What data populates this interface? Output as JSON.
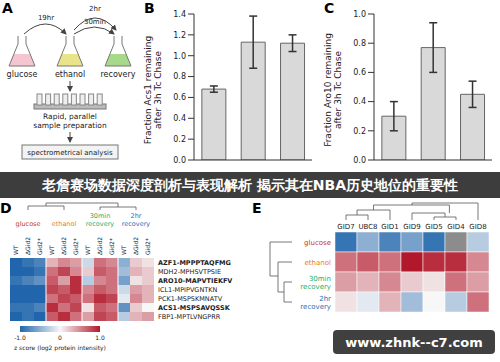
{
  "banner": "老詹赛场数据深度剖析与表现解析 揭示其在NBA历史地位的重要性",
  "watermark": "www.zhnk--c7.com",
  "panel_a": {
    "letter": "A",
    "flasks": [
      "glucose",
      "ethanol",
      "recovery"
    ],
    "times": [
      "19hr",
      "30min",
      "2hr"
    ],
    "steps": [
      "Rapid, parallel sample preparation",
      "spectrometrical analysis"
    ]
  },
  "chart_data": [
    {
      "letter": "B",
      "type": "bar",
      "y_label": "Fraction Acs1 remaining after 3h Tc Chase",
      "categories": [
        null,
        null,
        null
      ],
      "values": [
        0.68,
        1.13,
        1.12
      ],
      "errors": [
        0.03,
        0.25,
        0.08
      ],
      "ylim": [
        0,
        1.4
      ],
      "yticks": [
        {
          "value": 0,
          "label": "0.0"
        },
        0.2,
        0.4,
        0.6,
        0.8,
        {
          "value": 1,
          "label": "1.0"
        },
        1.2,
        1.4
      ],
      "grid": false,
      "tick_labels": "y",
      "color": "#d9d9d9"
    },
    {
      "letter": "C",
      "type": "bar",
      "y_label": "Fraction Aro10 remaining after 3h Tc Chase",
      "categories": [
        null,
        null,
        null
      ],
      "values": [
        0.3,
        0.77,
        0.45
      ],
      "errors": [
        0.1,
        0.17,
        0.09
      ],
      "ylim": [
        0,
        1.0
      ],
      "yticks": [
        {
          "value": 0,
          "label": "0.0"
        },
        0.2,
        0.4,
        0.6,
        0.8,
        {
          "value": 1,
          "label": "1.0"
        }
      ],
      "grid": false,
      "tick_labels": "y",
      "color": "#d9d9d9"
    }
  ],
  "panel_d": {
    "letter": "D",
    "groups": [
      "glucose",
      "ethanol",
      "30min recovery",
      "2hr recovery"
    ],
    "strains": [
      "WT",
      "ΔGid2",
      "Gid2*"
    ],
    "rows": [
      {
        "label": "AZF1-MPPPTAQFMG",
        "bold": true,
        "values": [
          -1,
          -0.9,
          -0.8,
          0.3,
          0.5,
          0.4,
          -0.2,
          0.6,
          0.5,
          -0.5,
          0.2,
          0.1
        ]
      },
      {
        "label": "MDH2-MPHSVTPSIE",
        "bold": false,
        "values": [
          -1,
          -1,
          -0.9,
          0.6,
          0.8,
          0.5,
          0.2,
          0.7,
          0.6,
          -0.4,
          0.3,
          0.2
        ]
      },
      {
        "label": "ARO10-MAPVTIEKFV",
        "bold": true,
        "values": [
          -0.9,
          -0.8,
          -0.7,
          0.7,
          0.4,
          0.9,
          -0.3,
          0.5,
          0.6,
          -0.6,
          0.1,
          0.2
        ]
      },
      {
        "label": "ICL1-MPIPVGNTKN",
        "bold": false,
        "values": [
          -1,
          -1,
          -1,
          0.8,
          0.7,
          0.9,
          0.5,
          0.7,
          0.6,
          -0.2,
          0.4,
          0.3
        ]
      },
      {
        "label": "PCK1-MSPSKMNATV",
        "bold": false,
        "values": [
          -1,
          -1,
          -1,
          0.6,
          0.8,
          0.7,
          0.6,
          0.9,
          0.8,
          -0.1,
          0.5,
          0.3
        ]
      },
      {
        "label": "ACS1-MSPSAVQSSK",
        "bold": true,
        "values": [
          -0.9,
          -0.9,
          -0.8,
          0.9,
          0.6,
          0.8,
          0.1,
          0.7,
          0.6,
          -0.7,
          0.2,
          0.0
        ]
      },
      {
        "label": "FBP1-MPTLVNGPRR",
        "bold": false,
        "values": [
          -1,
          -0.9,
          -1,
          0.7,
          0.9,
          0.6,
          0.4,
          0.8,
          0.7,
          -0.3,
          0.3,
          0.4
        ]
      }
    ],
    "color_range": [
      -1,
      1
    ],
    "color_ticks": [
      {
        "value": -1,
        "label": "-1.0"
      },
      0,
      {
        "value": 1,
        "label": "1.0"
      }
    ],
    "color_label": "z score (log2 protein intensity)"
  },
  "panel_e": {
    "letter": "E",
    "columns": [
      "GID7",
      "UBC8",
      "GID1",
      "GID9",
      "GID5",
      "GID4",
      "GID8"
    ],
    "rows": [
      {
        "label": "glucose",
        "values": [
          -0.9,
          -0.5,
          -0.8,
          -0.6,
          -0.9,
          null,
          -0.3
        ]
      },
      {
        "label": "ethanol",
        "values": [
          0.6,
          0.7,
          0.6,
          1.0,
          0.9,
          0.9,
          0.5
        ]
      },
      {
        "label": "30min recovery",
        "values": [
          0.4,
          0.3,
          0.5,
          0.2,
          0.1,
          0.6,
          0.4
        ]
      },
      {
        "label": "2hr recovery",
        "values": [
          0.1,
          -0.1,
          0.3,
          -0.4,
          0.0,
          -0.3,
          0.6
        ]
      }
    ],
    "color_range": [
      -1,
      1
    ]
  }
}
